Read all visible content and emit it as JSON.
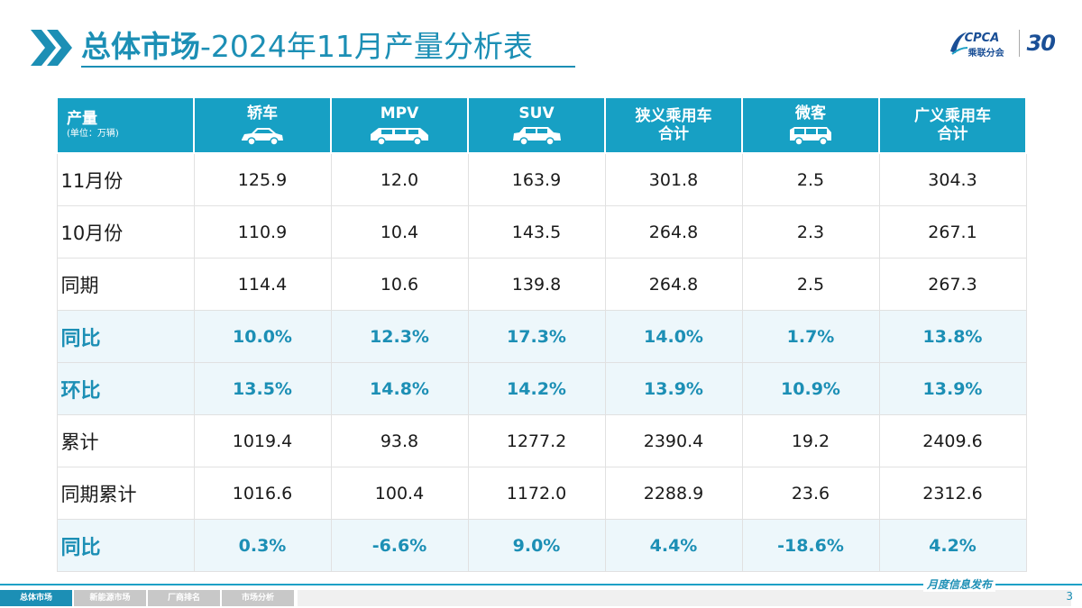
{
  "header": {
    "title_bold": "总体市场",
    "title_rest": "-2024年11月产量分析表",
    "logo_text": "CPCA",
    "logo_sub": "乘联分会",
    "logo_anniv": "30"
  },
  "table": {
    "corner_label": "产量",
    "corner_unit": "(单位：万辆)",
    "columns": [
      {
        "line1": "轿车",
        "line2": "",
        "icon": "sedan-icon"
      },
      {
        "line1": "MPV",
        "line2": "",
        "icon": "mpv-icon"
      },
      {
        "line1": "SUV",
        "line2": "",
        "icon": "suv-icon"
      },
      {
        "line1": "狭义乘用车",
        "line2": "合计",
        "icon": ""
      },
      {
        "line1": "微客",
        "line2": "",
        "icon": "minivan-icon"
      },
      {
        "line1": "广义乘用车",
        "line2": "合计",
        "icon": ""
      }
    ],
    "rows": [
      {
        "label": "11月份",
        "values": [
          "125.9",
          "12.0",
          "163.9",
          "301.8",
          "2.5",
          "304.3"
        ],
        "highlight": false
      },
      {
        "label": "10月份",
        "values": [
          "110.9",
          "10.4",
          "143.5",
          "264.8",
          "2.3",
          "267.1"
        ],
        "highlight": false
      },
      {
        "label": "同期",
        "values": [
          "114.4",
          "10.6",
          "139.8",
          "264.8",
          "2.5",
          "267.3"
        ],
        "highlight": false
      },
      {
        "label": "同比",
        "values": [
          "10.0%",
          "12.3%",
          "17.3%",
          "14.0%",
          "1.7%",
          "13.8%"
        ],
        "highlight": true
      },
      {
        "label": "环比",
        "values": [
          "13.5%",
          "14.8%",
          "14.2%",
          "13.9%",
          "10.9%",
          "13.9%"
        ],
        "highlight": true
      },
      {
        "label": "累计",
        "values": [
          "1019.4",
          "93.8",
          "1277.2",
          "2390.4",
          "19.2",
          "2409.6"
        ],
        "highlight": false
      },
      {
        "label": "同期累计",
        "values": [
          "1016.6",
          "100.4",
          "1172.0",
          "2288.9",
          "23.6",
          "2312.6"
        ],
        "highlight": false
      },
      {
        "label": "同比",
        "values": [
          "0.3%",
          "-6.6%",
          "9.0%",
          "4.4%",
          "-18.6%",
          "4.2%"
        ],
        "highlight": true
      }
    ]
  },
  "footer": {
    "tabs": [
      "总体市场",
      "新能源市场",
      "厂商排名",
      "市场分析"
    ],
    "active_tab": 0,
    "tagline": "月度信息发布",
    "page_number": "3"
  },
  "colors": {
    "accent": "#1c8fb5",
    "header_bg": "#17a0c4",
    "highlight_row_bg": "#edf7fb"
  }
}
